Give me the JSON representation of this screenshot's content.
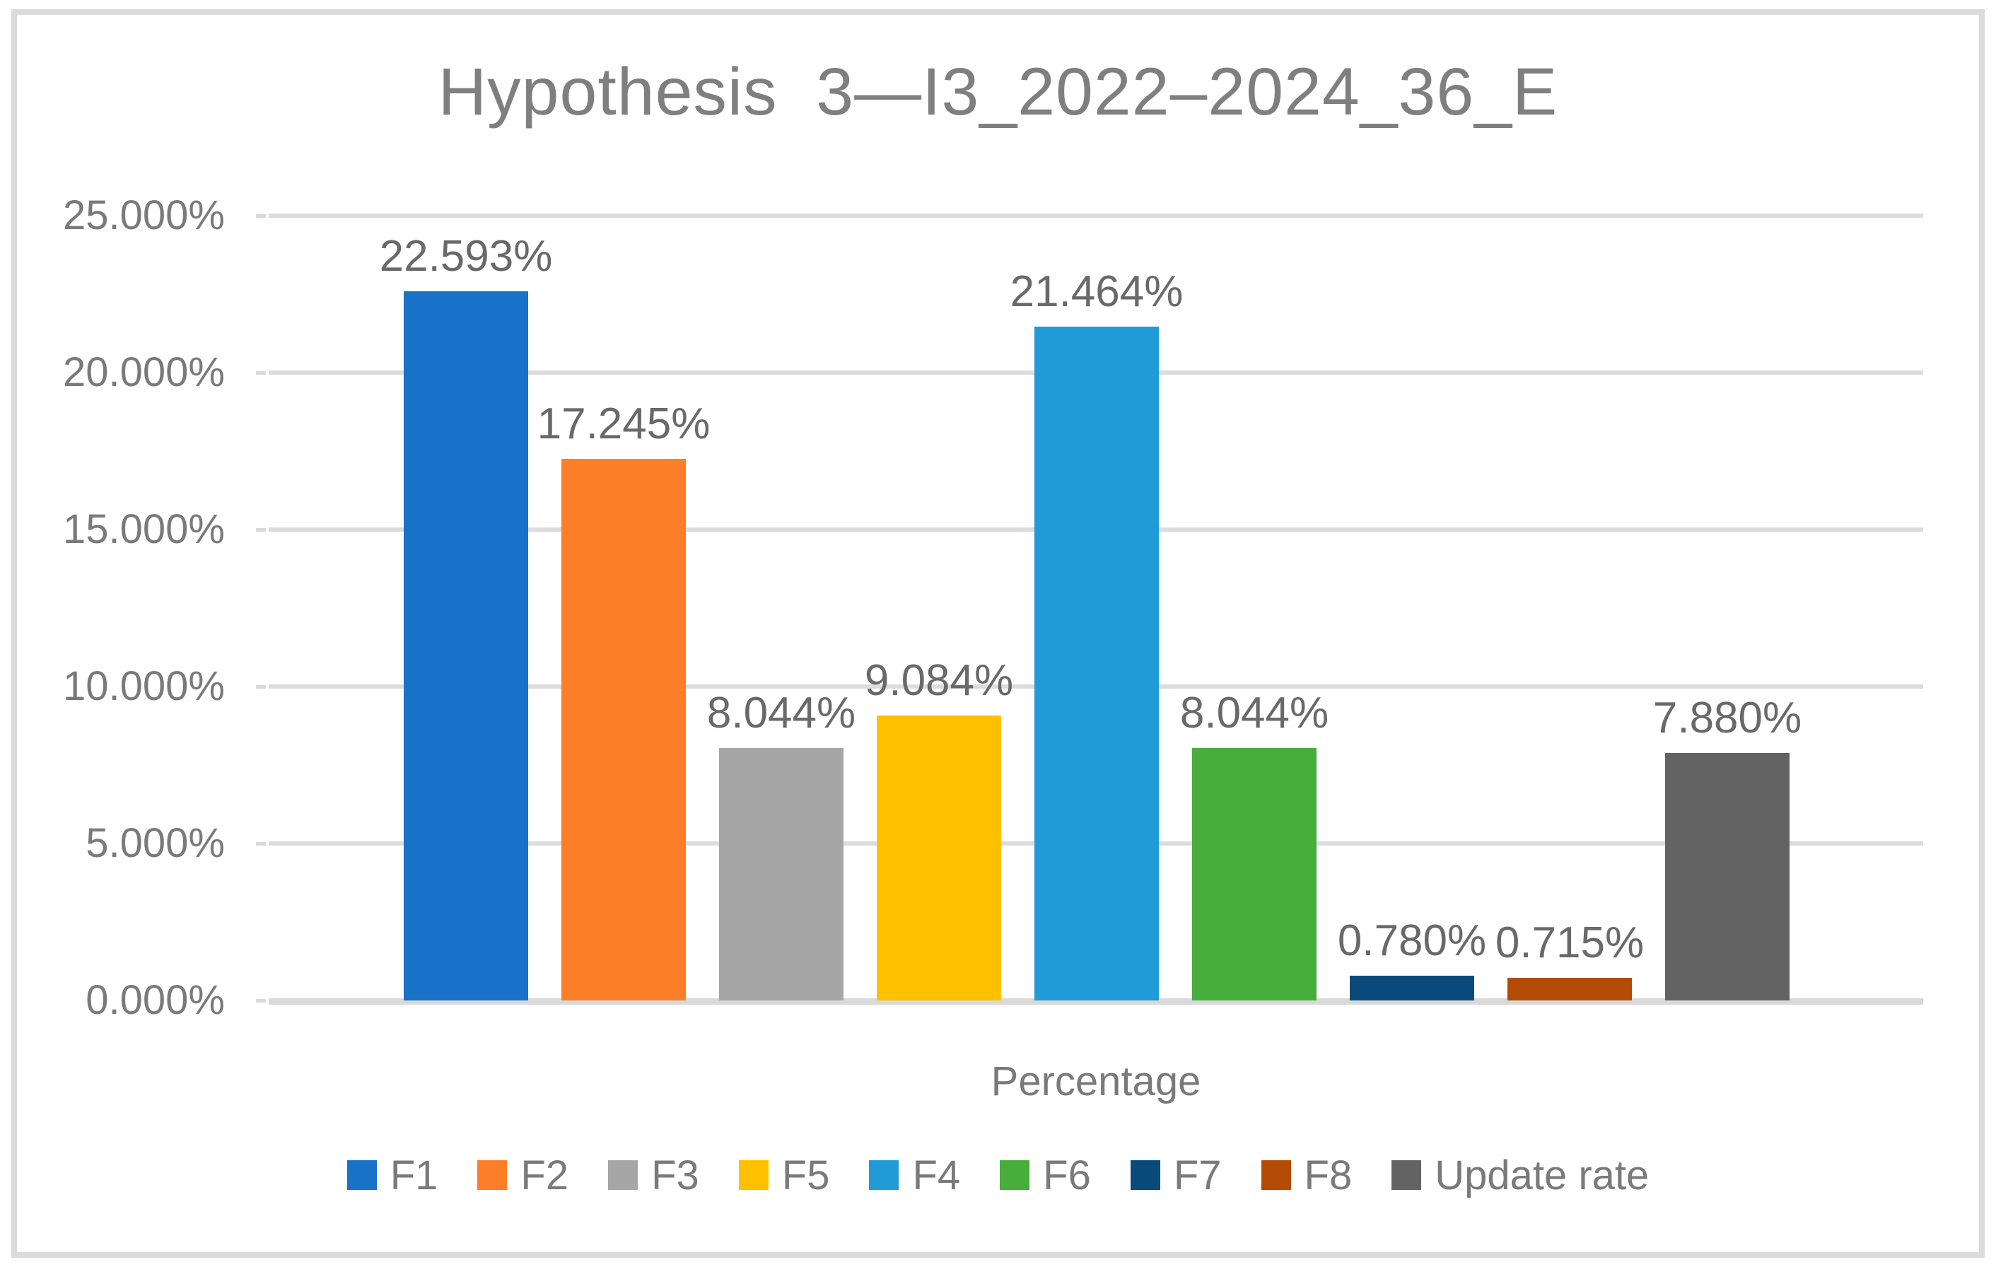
{
  "chart_data": {
    "type": "bar",
    "title": "Hypothesis  3—I3_2022–2024_36_E",
    "xlabel": "Percentage",
    "ylabel": "",
    "ylim": [
      0,
      25
    ],
    "grid": true,
    "legend_position": "bottom",
    "ytick_labels": [
      "25.000%",
      "20.000%",
      "15.000%",
      "10.000%",
      "5.000%",
      "0.000%"
    ],
    "categories": [
      "F1",
      "F2",
      "F3",
      "F5",
      "F4",
      "F6",
      "F7",
      "F8",
      "Update rate"
    ],
    "values": [
      22.593,
      17.245,
      8.044,
      9.084,
      21.464,
      8.044,
      0.78,
      0.715,
      7.88
    ],
    "data_labels": [
      "22.593%",
      "17.245%",
      "8.044%",
      "9.084%",
      "21.464%",
      "8.044%",
      "0.780%",
      "0.715%",
      "7.880%"
    ],
    "colors": [
      "#1772C8",
      "#FD7E28",
      "#A6A6A6",
      "#FFC000",
      "#1F9BD7",
      "#47AD3B",
      "#0A4A7B",
      "#B44B04",
      "#636363"
    ],
    "gridline_color": "#DCDCDC",
    "baseline_color": "#D9D9D9",
    "frame_color": "#DBDBDB",
    "title_color": "#7F7F7F",
    "axis_text_color": "#7A7A7A",
    "data_label_color": "#696969"
  }
}
